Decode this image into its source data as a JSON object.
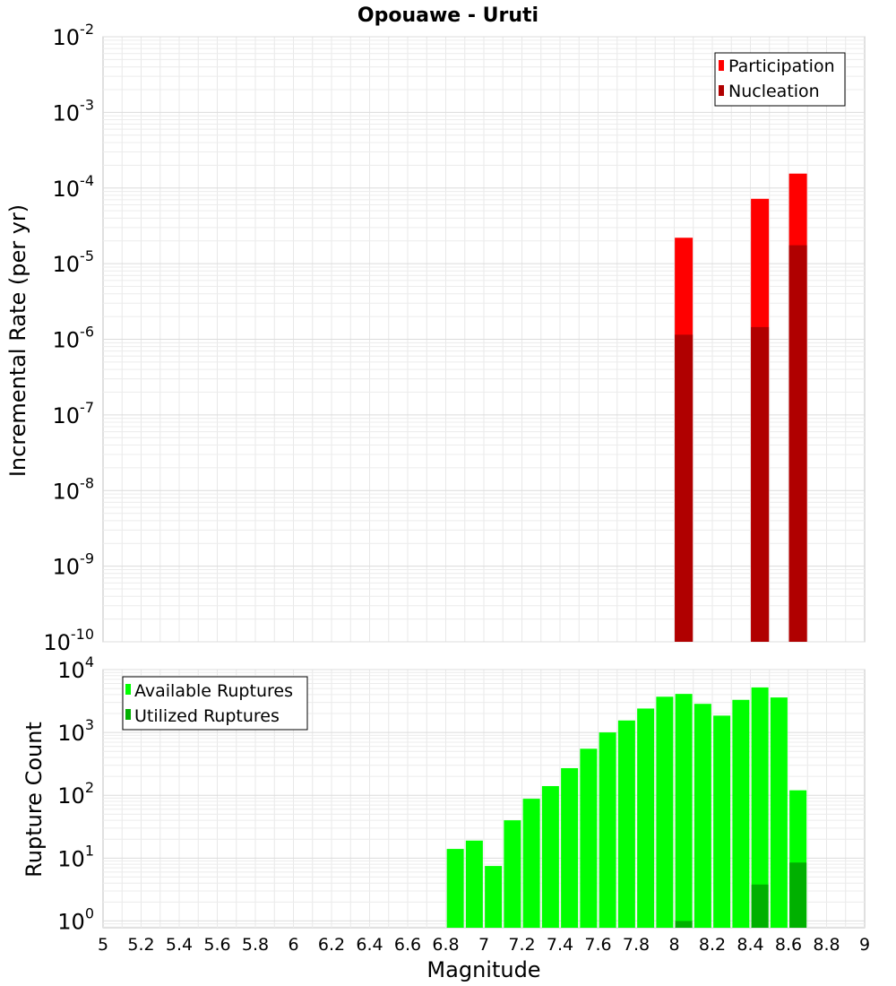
{
  "chart_data": [
    {
      "type": "bar",
      "title": "Opouawe - Uruti",
      "ylabel": "Incremental Rate (per yr)",
      "yscale": "log",
      "ylim": [
        1e-10,
        0.01
      ],
      "xlim": [
        5,
        9
      ],
      "grid": true,
      "legend_position": "top-right",
      "y_tick_labels": [
        {
          "value": 1e-10,
          "base": "10",
          "exp": "-10"
        },
        {
          "value": 1e-09,
          "base": "10",
          "exp": "-9"
        },
        {
          "value": 1e-08,
          "base": "10",
          "exp": "-8"
        },
        {
          "value": 1e-07,
          "base": "10",
          "exp": "-7"
        },
        {
          "value": 1e-06,
          "base": "10",
          "exp": "-6"
        },
        {
          "value": 1e-05,
          "base": "10",
          "exp": "-5"
        },
        {
          "value": 0.0001,
          "base": "10",
          "exp": "-4"
        },
        {
          "value": 0.001,
          "base": "10",
          "exp": "-3"
        },
        {
          "value": 0.01,
          "base": "10",
          "exp": "-2"
        }
      ],
      "x": [
        8.05,
        8.45,
        8.65
      ],
      "series": [
        {
          "name": "Participation",
          "color": "#ff0000",
          "values": [
            2.2e-05,
            7.2e-05,
            0.000155
          ]
        },
        {
          "name": "Nucleation",
          "color": "#b00000",
          "values": [
            1.15e-06,
            1.45e-06,
            1.75e-05
          ]
        }
      ]
    },
    {
      "type": "bar",
      "xlabel": "Magnitude",
      "ylabel": "Rupture Count",
      "yscale": "log",
      "ylim": [
        0.78,
        10000
      ],
      "xlim": [
        5,
        9
      ],
      "grid": true,
      "legend_position": "top-left",
      "y_tick_labels": [
        {
          "value": 1,
          "base": "10",
          "exp": "0"
        },
        {
          "value": 10,
          "base": "10",
          "exp": "1"
        },
        {
          "value": 100,
          "base": "10",
          "exp": "2"
        },
        {
          "value": 1000,
          "base": "10",
          "exp": "3"
        },
        {
          "value": 10000,
          "base": "10",
          "exp": "4"
        }
      ],
      "x_ticks": [
        "5",
        "5.2",
        "5.4",
        "5.6",
        "5.8",
        "6",
        "6.2",
        "6.4",
        "6.6",
        "6.8",
        "7",
        "7.2",
        "7.4",
        "7.6",
        "7.8",
        "8",
        "8.2",
        "8.4",
        "8.6",
        "8.8",
        "9"
      ],
      "x": [
        6.85,
        6.95,
        7.05,
        7.15,
        7.25,
        7.35,
        7.45,
        7.55,
        7.65,
        7.75,
        7.85,
        7.95,
        8.05,
        8.15,
        8.25,
        8.35,
        8.45,
        8.55,
        8.65
      ],
      "series": [
        {
          "name": "Available Ruptures",
          "color": "#00ff00",
          "values": [
            14,
            19,
            7.5,
            40,
            88,
            140,
            270,
            550,
            1000,
            1550,
            2400,
            3700,
            4100,
            2850,
            1850,
            3300,
            5200,
            3600,
            120
          ]
        },
        {
          "name": "Utilized Ruptures",
          "color": "#00b000",
          "values": [
            0,
            0,
            0,
            0,
            0,
            0,
            0,
            0,
            0,
            0,
            0,
            0,
            1,
            0,
            0,
            0,
            3.8,
            0,
            8.5
          ]
        }
      ]
    }
  ]
}
